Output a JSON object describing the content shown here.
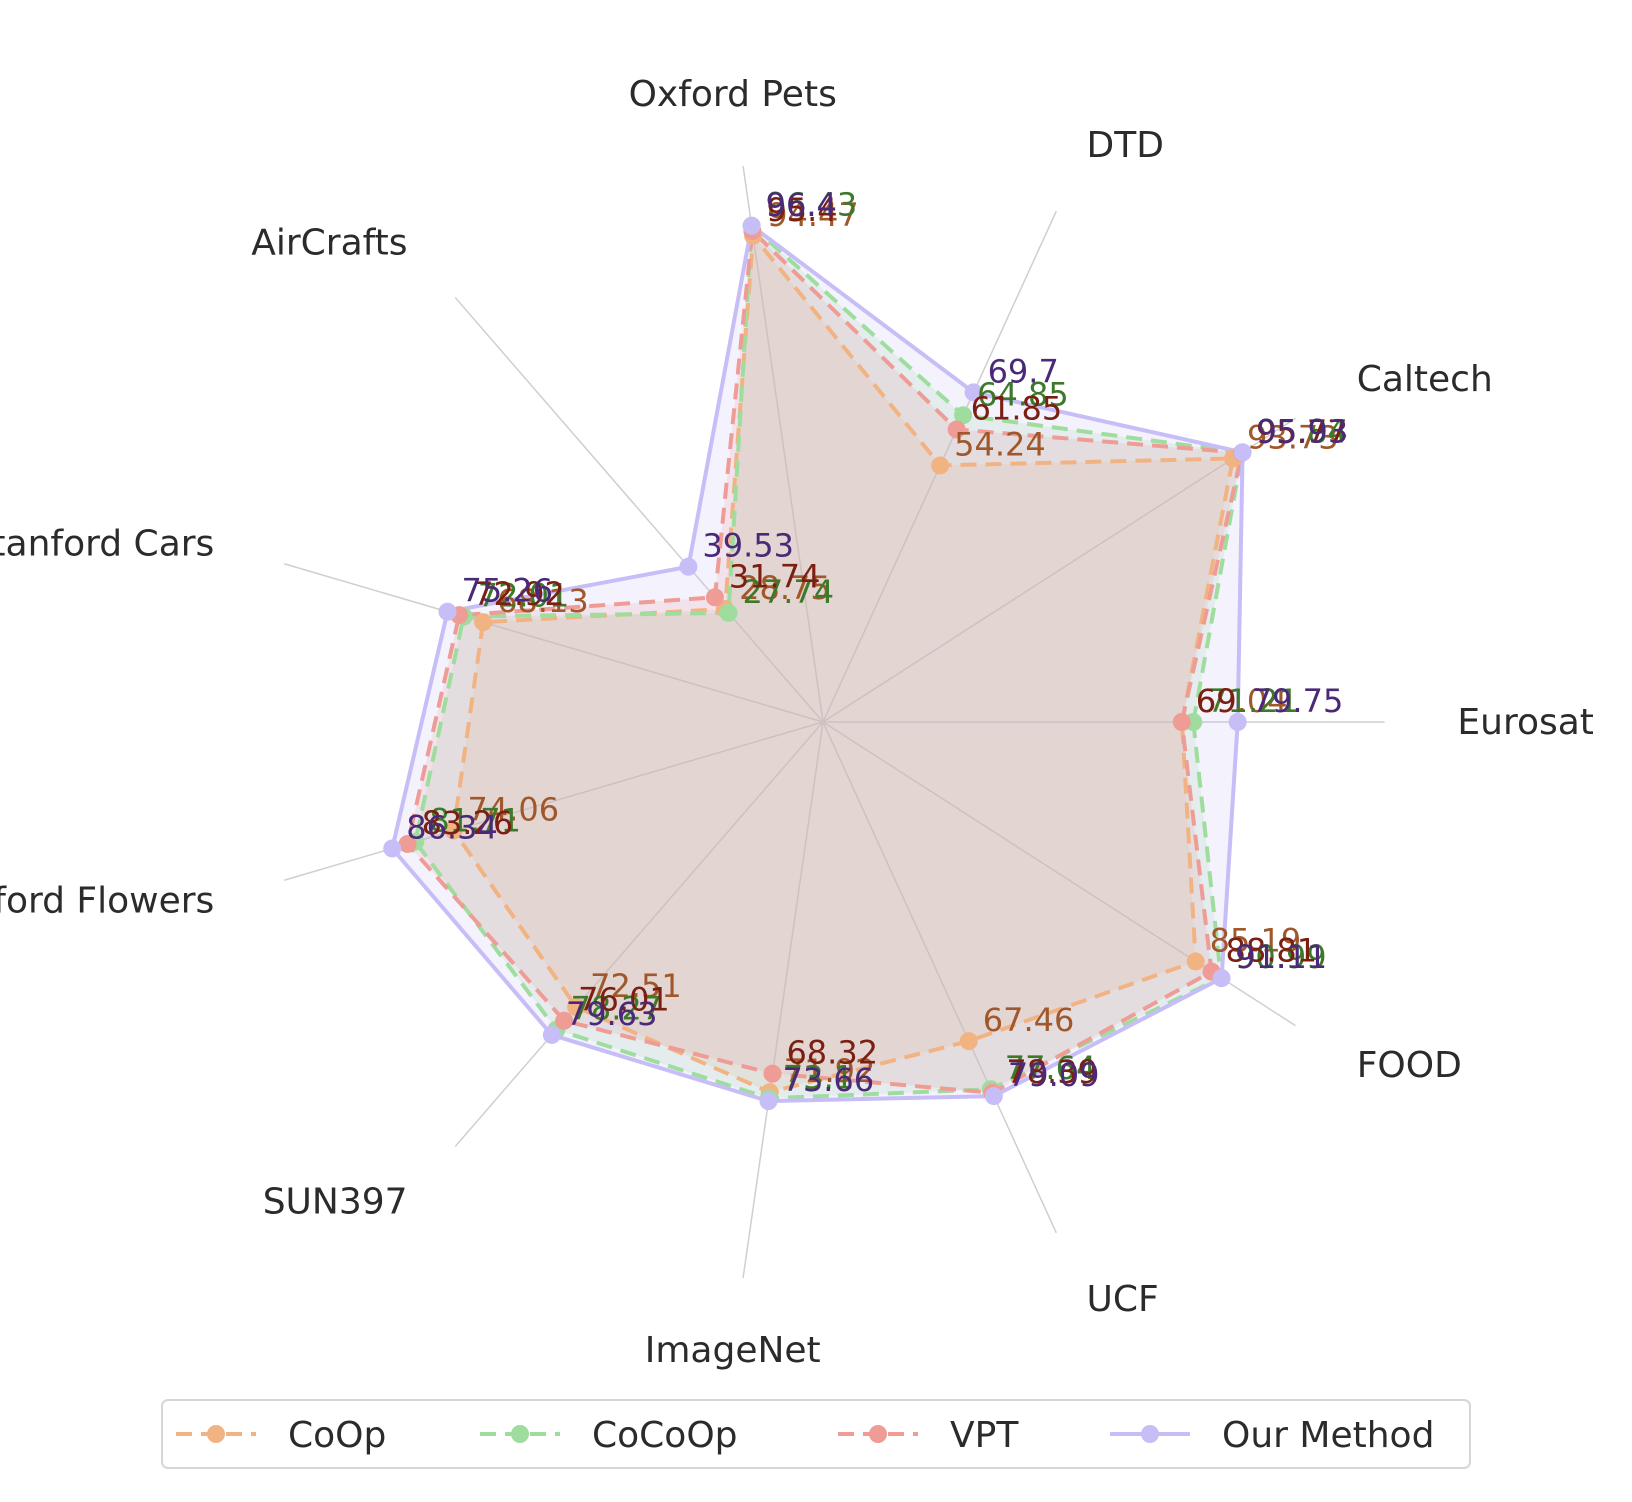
{
  "chart_data": {
    "type": "radar",
    "title": "",
    "categories": [
      "Eurosat",
      "Caltech",
      "DTD",
      "Oxford Pets",
      "AirCrafts",
      "Stanford Cars",
      "Oxford Flowers",
      "SUN397",
      "ImageNet",
      "UCF",
      "FOOD"
    ],
    "rmax": 100,
    "legend_position": "bottom",
    "series": [
      {
        "name": "CoOp",
        "color": "#f2b383",
        "label_color": "#a0582a",
        "line_style": "dashed",
        "values": [
          69.04,
          93.73,
          54.24,
          94.47,
          28.75,
          68.13,
          74.06,
          72.51,
          71.92,
          67.46,
          85.19
        ]
      },
      {
        "name": "CoCoOp",
        "color": "#9fdd9f",
        "label_color": "#3c7a2a",
        "line_style": "dashed",
        "values": [
          71.21,
          95.84,
          64.85,
          96.43,
          27.74,
          72.01,
          81.71,
          78.27,
          73.1,
          77.64,
          90.99
        ]
      },
      {
        "name": "VPT",
        "color": "#ee9c95",
        "label_color": "#7a1f12",
        "line_style": "dashed",
        "values": [
          69.0,
          95.77,
          61.85,
          95.4,
          31.74,
          72.92,
          83.26,
          76.01,
          68.32,
          78.39,
          88.81
        ]
      },
      {
        "name": "Our Method",
        "color": "#c7bdf7",
        "label_color": "#4a2a78",
        "line_style": "solid",
        "values": [
          79.75,
          95.93,
          69.7,
          96.4,
          39.53,
          75.26,
          86.34,
          79.63,
          73.66,
          79.09,
          91.11
        ]
      }
    ]
  }
}
